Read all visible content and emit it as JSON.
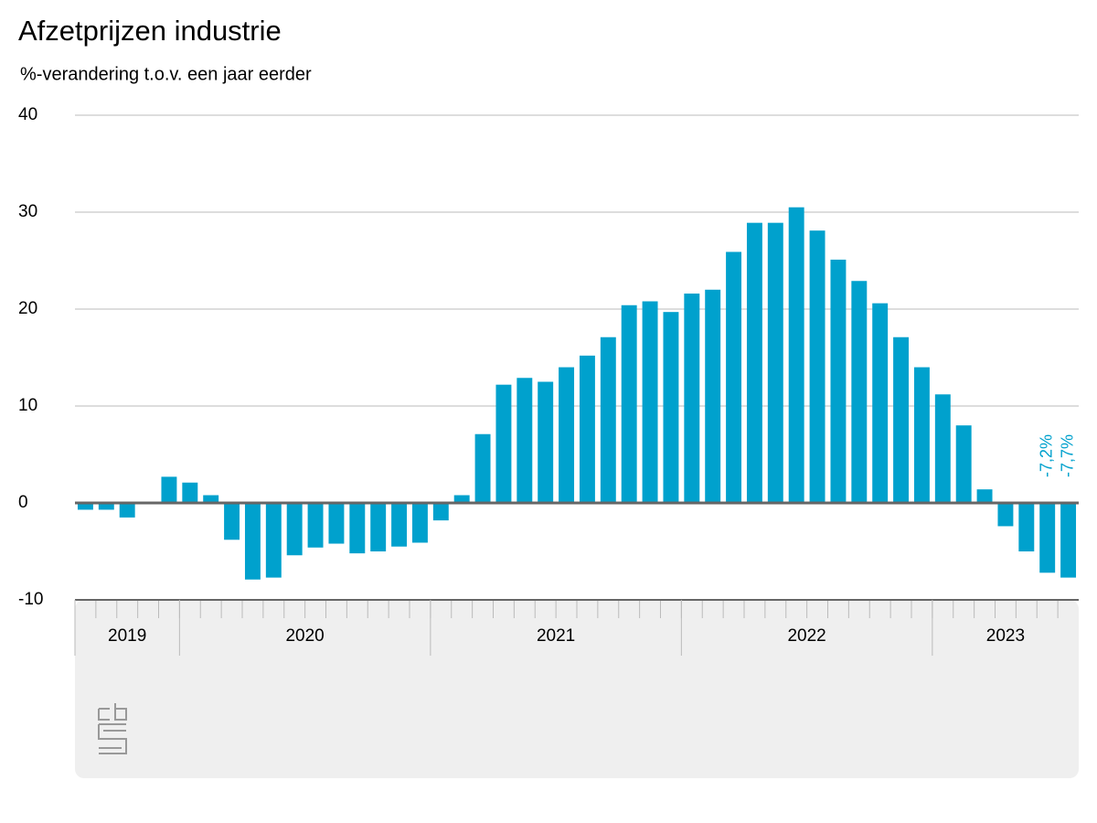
{
  "chart_data": {
    "type": "bar",
    "title": "Afzetprijzen industrie",
    "subtitle": "%-verandering t.o.v. een jaar eerder",
    "categories": [
      null,
      null,
      null,
      null,
      null,
      null,
      null,
      null,
      null,
      null,
      null,
      null,
      null,
      null,
      null,
      null,
      null,
      null,
      null,
      null,
      null,
      null,
      null,
      null,
      null,
      null,
      null,
      null,
      null,
      null,
      null,
      null,
      null,
      null,
      null,
      null,
      null,
      null,
      null,
      null,
      null,
      null,
      null,
      null,
      null,
      null,
      null,
      null
    ],
    "x_groups": [
      {
        "label": "2019",
        "count": 5
      },
      {
        "label": "2020",
        "count": 12
      },
      {
        "label": "2021",
        "count": 12
      },
      {
        "label": "2022",
        "count": 12
      },
      {
        "label": "2023",
        "count": 7
      }
    ],
    "values": [
      -0.7,
      -0.7,
      -1.5,
      0,
      2.7,
      2.1,
      0.8,
      -3.8,
      -7.9,
      -7.7,
      -5.4,
      -4.6,
      -4.2,
      -5.2,
      -5.0,
      -4.5,
      -4.1,
      -1.8,
      0.8,
      7.1,
      12.2,
      12.9,
      12.5,
      14.0,
      15.2,
      17.1,
      20.4,
      20.8,
      19.7,
      21.6,
      22.0,
      25.9,
      28.9,
      28.9,
      30.5,
      28.1,
      25.1,
      22.9,
      20.6,
      17.1,
      14.0,
      11.2,
      8.0,
      1.4,
      -2.4,
      -5.0,
      -7.2,
      -7.7
    ],
    "value_labels": [
      null,
      null,
      null,
      null,
      null,
      null,
      null,
      null,
      null,
      null,
      null,
      null,
      null,
      null,
      null,
      null,
      null,
      null,
      null,
      null,
      null,
      null,
      null,
      null,
      null,
      null,
      null,
      null,
      null,
      null,
      null,
      null,
      null,
      null,
      null,
      null,
      null,
      null,
      null,
      null,
      null,
      null,
      null,
      null,
      null,
      null,
      "-7,2%",
      "-7,7%"
    ],
    "color": "#00a1cd",
    "ylim": [
      -10,
      40
    ],
    "yticks": [
      -10,
      0,
      10,
      20,
      30,
      40
    ],
    "grid": true
  }
}
